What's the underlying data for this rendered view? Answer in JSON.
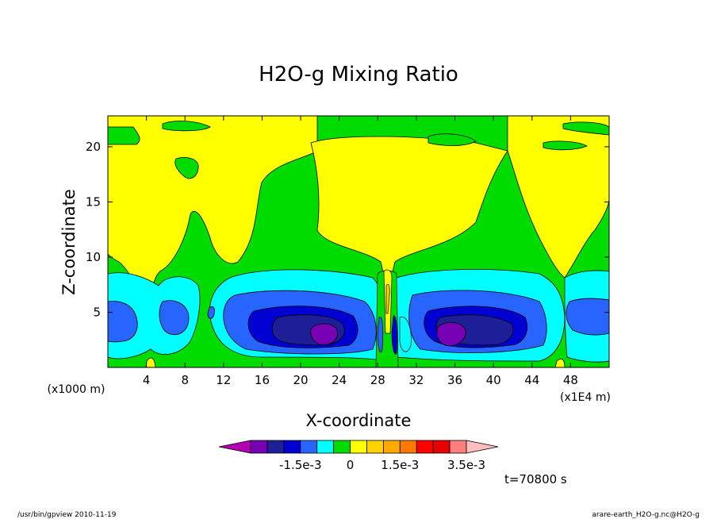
{
  "chart_data": {
    "type": "heatmap",
    "title": "H2O-g Mixing Ratio",
    "xlabel": "X-coordinate",
    "ylabel": "Z-coordinate",
    "x_unit_left": "(x1000 m)",
    "x_unit_right": "(x1E4 m)",
    "xlim": [
      0,
      52
    ],
    "ylim": [
      0,
      22.8
    ],
    "x_ticks": [
      4,
      8,
      12,
      16,
      20,
      24,
      28,
      32,
      36,
      40,
      44,
      48
    ],
    "y_ticks": [
      5,
      10,
      15,
      20
    ],
    "colorbar": {
      "levels": [
        -0.0035,
        -0.003,
        -0.0025,
        -0.002,
        -0.0015,
        -0.001,
        -0.0005,
        0,
        0.0005,
        0.001,
        0.0015,
        0.002,
        0.0025,
        0.003,
        0.0035
      ],
      "colors": [
        "#b400b4",
        "#7800b4",
        "#1e1e96",
        "#0000d2",
        "#2864ff",
        "#00ffff",
        "#00dc00",
        "#ffff00",
        "#ffd200",
        "#ffaa00",
        "#ff7800",
        "#ff0000",
        "#e60000",
        "#ff7f7f",
        "#ffbebe"
      ],
      "labels": [
        "-1.5e-3",
        "0",
        "1.5e-3",
        "3.5e-3"
      ],
      "label_values": [
        -0.0015,
        0,
        0.0015,
        0.0035
      ]
    },
    "time_label": "t=70800 s",
    "footer_left": "/usr/bin/gpview  2010-11-19",
    "footer_right": "arare-earth_H2O-g.nc@H2O-g"
  }
}
